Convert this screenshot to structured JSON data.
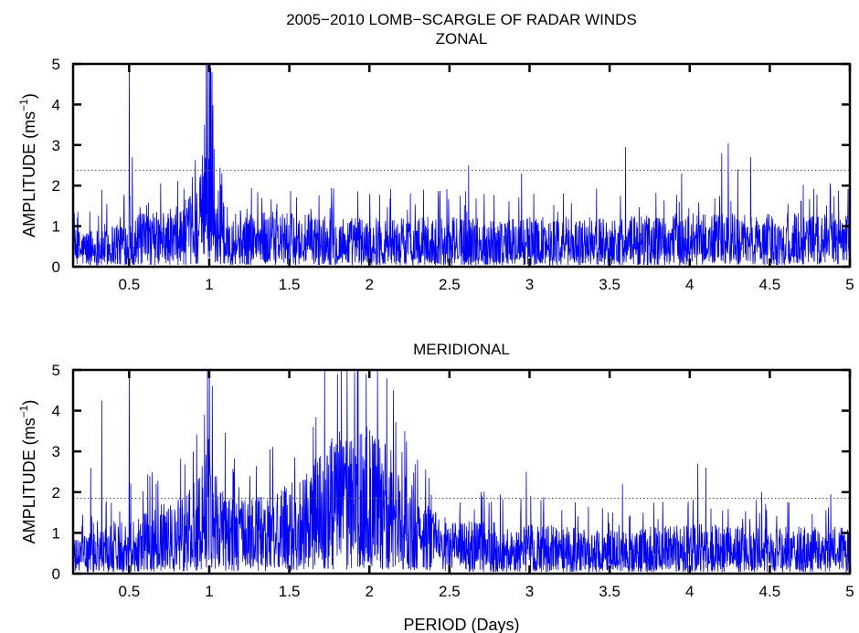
{
  "figure": {
    "title_line1": "2005−2010 LOMB−SCARGLE OF RADAR WINDS",
    "xlabel": "PERIOD (Days)",
    "line_color": "#0000ff",
    "threshold_color": "#555555"
  },
  "chart_data": [
    {
      "type": "line",
      "title": "ZONAL",
      "xlabel": "",
      "ylabel": "AMPLITUDE (ms",
      "ylabel_sup": "−1",
      "ylabel_close": ")",
      "xlim": [
        0.15,
        5.0
      ],
      "ylim": [
        0,
        5
      ],
      "xticks": [
        0.5,
        1,
        1.5,
        2,
        2.5,
        3,
        3.5,
        4,
        4.5,
        5
      ],
      "xtick_labels": [
        "0.5",
        "1",
        "1.5",
        "2",
        "2.5",
        "3",
        "3.5",
        "4",
        "4.5",
        "5"
      ],
      "yticks": [
        0,
        1,
        2,
        3,
        4,
        5
      ],
      "ytick_labels": [
        "0",
        "1",
        "2",
        "3",
        "4",
        "5"
      ],
      "significance_level": 2.38,
      "grid": false,
      "envelope": [
        [
          0.15,
          0.55
        ],
        [
          0.3,
          0.6
        ],
        [
          0.45,
          0.75
        ],
        [
          0.6,
          0.8
        ],
        [
          0.8,
          0.9
        ],
        [
          0.9,
          1.1
        ],
        [
          0.96,
          1.5
        ],
        [
          1.0,
          2.4
        ],
        [
          1.04,
          1.3
        ],
        [
          1.1,
          0.9
        ],
        [
          1.5,
          0.8
        ],
        [
          2.0,
          0.75
        ],
        [
          2.5,
          0.75
        ],
        [
          3.0,
          0.75
        ],
        [
          3.5,
          0.75
        ],
        [
          4.0,
          0.8
        ],
        [
          4.5,
          0.8
        ],
        [
          5.0,
          0.8
        ]
      ],
      "peaks": [
        [
          0.5,
          5.0
        ],
        [
          0.52,
          2.7
        ],
        [
          0.33,
          1.9
        ],
        [
          0.99,
          5.0
        ],
        [
          1.0,
          5.0
        ],
        [
          1.01,
          4.9
        ],
        [
          0.97,
          3.5
        ],
        [
          1.03,
          2.9
        ],
        [
          2.62,
          2.5
        ],
        [
          3.6,
          2.95
        ],
        [
          4.2,
          2.8
        ],
        [
          4.24,
          3.05
        ],
        [
          4.3,
          2.4
        ],
        [
          4.38,
          2.7
        ],
        [
          2.95,
          2.3
        ],
        [
          3.95,
          2.3
        ]
      ]
    },
    {
      "type": "line",
      "title": "MERIDIONAL",
      "xlabel": "PERIOD (Days)",
      "ylabel": "AMPLITUDE (ms",
      "ylabel_sup": "−1",
      "ylabel_close": ")",
      "xlim": [
        0.15,
        5.0
      ],
      "ylim": [
        0,
        5
      ],
      "xticks": [
        0.5,
        1,
        1.5,
        2,
        2.5,
        3,
        3.5,
        4,
        4.5,
        5
      ],
      "xtick_labels": [
        "0.5",
        "1",
        "1.5",
        "2",
        "2.5",
        "3",
        "3.5",
        "4",
        "4.5",
        "5"
      ],
      "yticks": [
        0,
        1,
        2,
        3,
        4,
        5
      ],
      "ytick_labels": [
        "0",
        "1",
        "2",
        "3",
        "4",
        "5"
      ],
      "significance_level": 1.85,
      "grid": false,
      "envelope": [
        [
          0.15,
          0.5
        ],
        [
          0.3,
          0.65
        ],
        [
          0.45,
          0.85
        ],
        [
          0.6,
          0.95
        ],
        [
          0.8,
          1.1
        ],
        [
          0.92,
          1.4
        ],
        [
          1.0,
          2.2
        ],
        [
          1.08,
          1.4
        ],
        [
          1.2,
          1.1
        ],
        [
          1.4,
          1.2
        ],
        [
          1.6,
          1.5
        ],
        [
          1.75,
          2.0
        ],
        [
          1.9,
          2.3
        ],
        [
          2.0,
          2.2
        ],
        [
          2.15,
          1.8
        ],
        [
          2.3,
          1.2
        ],
        [
          2.5,
          0.8
        ],
        [
          3.0,
          0.75
        ],
        [
          3.5,
          0.65
        ],
        [
          4.0,
          0.75
        ],
        [
          4.5,
          0.7
        ],
        [
          5.0,
          0.7
        ]
      ],
      "peaks": [
        [
          0.5,
          5.0
        ],
        [
          0.33,
          4.25
        ],
        [
          0.26,
          2.6
        ],
        [
          0.99,
          5.0
        ],
        [
          1.0,
          5.0
        ],
        [
          1.02,
          4.6
        ],
        [
          0.97,
          3.9
        ],
        [
          0.9,
          3.0
        ],
        [
          1.72,
          5.0
        ],
        [
          1.8,
          4.9
        ],
        [
          1.86,
          5.0
        ],
        [
          1.93,
          5.0
        ],
        [
          1.98,
          4.9
        ],
        [
          2.05,
          5.0
        ],
        [
          2.15,
          4.5
        ],
        [
          1.65,
          3.6
        ],
        [
          2.22,
          3.5
        ],
        [
          2.3,
          2.8
        ],
        [
          2.98,
          2.5
        ],
        [
          3.58,
          2.2
        ],
        [
          4.05,
          2.7
        ],
        [
          4.1,
          2.6
        ],
        [
          4.45,
          2.0
        ],
        [
          4.88,
          1.95
        ]
      ]
    }
  ]
}
